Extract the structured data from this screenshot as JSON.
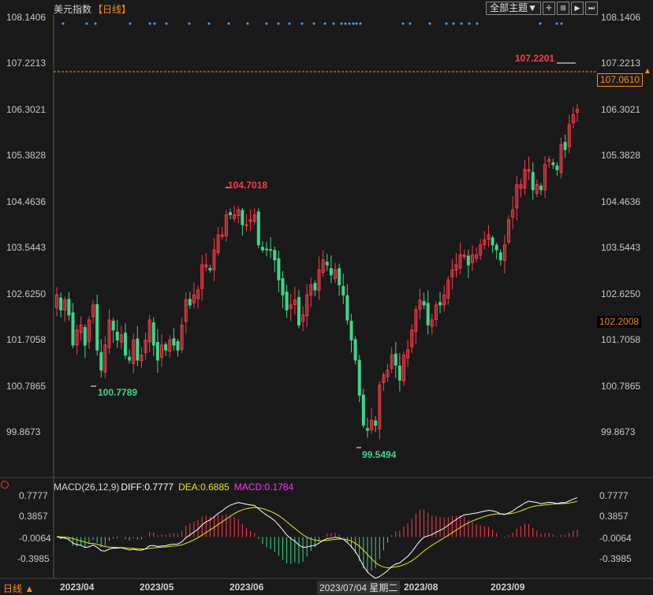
{
  "header": {
    "name": "美元指数",
    "period": "【日线】",
    "theme_button": "全部主题▼",
    "toolbar_icons": [
      "crosshair-icon",
      "zoom-in-icon",
      "play-step-icon",
      "skip-forward-icon"
    ]
  },
  "price_axis": {
    "left_labels": [
      "108.1406",
      "107.2213",
      "106.3021",
      "105.3828",
      "104.4636",
      "103.5443",
      "102.6250",
      "101.7058",
      "100.7865",
      "99.8673"
    ],
    "right_labels": [
      "108.1406",
      "107.2213",
      "106.3021",
      "105.3828",
      "104.4636",
      "103.5443",
      "102.6250",
      "101.7058",
      "100.7865",
      "99.8673"
    ]
  },
  "badges": {
    "current_price": "107.0610",
    "cursor_price": "102.2008"
  },
  "annotations": {
    "high_label": "104.7018",
    "low_label_1": "100.7789",
    "low_label_2": "99.5494",
    "latest_high_label": "107.2201"
  },
  "macd": {
    "params": "MACD(26,12,9)",
    "diff": "DIFF:0.7777",
    "dea": "DEA:0.6885",
    "macd": "MACD:0.1784",
    "labels": [
      "0.7777",
      "0.3857",
      "-0.0064",
      "-0.3985"
    ]
  },
  "x_axis": {
    "labels": [
      "2023/04",
      "2023/05",
      "2023/06",
      "2023/08",
      "2023/09"
    ],
    "cursor_date": "2023/07/04 星期二"
  },
  "footer": {
    "period": "日线 ▲"
  },
  "colors": {
    "up": "#ff3b4a",
    "down": "#3fd68a",
    "diff_line": "#ffffff",
    "dea_line": "#e8e81a",
    "macd_label": "#ff30ff",
    "accent": "#ff8c1a"
  },
  "chart_data": {
    "type": "candlestick",
    "ylim": [
      99.8673,
      108.1406
    ],
    "dates": [
      "2023/03/29",
      "2023/03/30",
      "2023/03/31",
      "2023/04/03",
      "2023/04/04",
      "2023/04/05",
      "2023/04/06",
      "2023/04/07",
      "2023/04/10",
      "2023/04/11",
      "2023/04/12",
      "2023/04/13",
      "2023/04/14",
      "2023/04/17",
      "2023/04/18",
      "2023/04/19",
      "2023/04/20",
      "2023/04/21",
      "2023/04/24",
      "2023/04/25",
      "2023/04/26",
      "2023/04/27",
      "2023/04/28",
      "2023/05/01",
      "2023/05/02",
      "2023/05/03",
      "2023/05/04",
      "2023/05/05",
      "2023/05/08",
      "2023/05/09",
      "2023/05/10",
      "2023/05/11",
      "2023/05/12",
      "2023/05/15",
      "2023/05/16",
      "2023/05/17",
      "2023/05/18",
      "2023/05/19",
      "2023/05/22",
      "2023/05/23",
      "2023/05/24",
      "2023/05/25",
      "2023/05/26",
      "2023/05/29",
      "2023/05/30",
      "2023/05/31",
      "2023/06/01",
      "2023/06/02",
      "2023/06/05",
      "2023/06/06",
      "2023/06/07",
      "2023/06/08",
      "2023/06/09",
      "2023/06/12",
      "2023/06/13",
      "2023/06/14",
      "2023/06/15",
      "2023/06/16",
      "2023/06/19",
      "2023/06/20",
      "2023/06/21",
      "2023/06/22",
      "2023/06/23",
      "2023/06/26",
      "2023/06/27",
      "2023/06/28",
      "2023/06/29",
      "2023/06/30",
      "2023/07/03",
      "2023/07/04",
      "2023/07/05",
      "2023/07/06",
      "2023/07/07",
      "2023/07/10",
      "2023/07/11",
      "2023/07/12",
      "2023/07/13",
      "2023/07/14",
      "2023/07/17",
      "2023/07/18",
      "2023/07/19",
      "2023/07/20",
      "2023/07/21",
      "2023/07/24",
      "2023/07/25",
      "2023/07/26",
      "2023/07/27",
      "2023/07/28",
      "2023/07/31",
      "2023/08/01",
      "2023/08/02",
      "2023/08/03",
      "2023/08/04",
      "2023/08/07",
      "2023/08/08",
      "2023/08/09",
      "2023/08/10",
      "2023/08/11",
      "2023/08/14",
      "2023/08/15",
      "2023/08/16",
      "2023/08/17",
      "2023/08/18",
      "2023/08/21",
      "2023/08/22",
      "2023/08/23",
      "2023/08/24",
      "2023/08/25",
      "2023/08/28",
      "2023/08/29",
      "2023/08/30",
      "2023/08/31",
      "2023/09/01",
      "2023/09/04",
      "2023/09/05",
      "2023/09/06",
      "2023/09/07",
      "2023/09/08",
      "2023/09/11",
      "2023/09/12",
      "2023/09/13",
      "2023/09/14",
      "2023/09/15",
      "2023/09/18",
      "2023/09/19",
      "2023/09/20",
      "2023/09/21",
      "2023/09/22",
      "2023/09/25",
      "2023/09/26"
    ],
    "closes": [
      102.6,
      102.3,
      102.5,
      102.2,
      101.6,
      101.9,
      102.0,
      101.6,
      102.1,
      102.4,
      101.5,
      101.1,
      101.6,
      102.1,
      101.9,
      101.7,
      101.8,
      101.4,
      101.3,
      101.7,
      101.3,
      101.4,
      101.7,
      102.1,
      101.6,
      101.3,
      101.6,
      101.5,
      101.7,
      101.6,
      101.5,
      102.0,
      102.5,
      102.4,
      102.6,
      102.7,
      103.2,
      103.2,
      103.1,
      103.5,
      103.8,
      103.8,
      104.2,
      104.2,
      104.2,
      104.3,
      104.0,
      104.0,
      104.1,
      104.2,
      103.6,
      103.5,
      103.5,
      103.5,
      103.3,
      102.9,
      102.6,
      102.3,
      102.4,
      102.5,
      102.0,
      102.2,
      102.6,
      102.8,
      102.7,
      103.1,
      103.3,
      103.2,
      103.0,
      103.1,
      102.8,
      102.6,
      102.1,
      101.7,
      101.3,
      100.6,
      100.0,
      99.9,
      100.1,
      100.0,
      100.8,
      101.0,
      101.1,
      101.4,
      101.2,
      100.9,
      101.4,
      101.5,
      101.9,
      102.3,
      102.5,
      102.4,
      102.0,
      102.1,
      102.4,
      102.4,
      102.6,
      102.9,
      103.1,
      103.2,
      103.4,
      103.4,
      103.2,
      103.4,
      103.4,
      103.6,
      103.7,
      103.8,
      103.6,
      103.5,
      103.3,
      103.6,
      104.1,
      104.3,
      104.8,
      104.8,
      105.1,
      105.1,
      104.7,
      104.8,
      104.7,
      105.2,
      105.3,
      105.2,
      105.1,
      105.6,
      105.5,
      106.0,
      106.2,
      106.3
    ]
  }
}
